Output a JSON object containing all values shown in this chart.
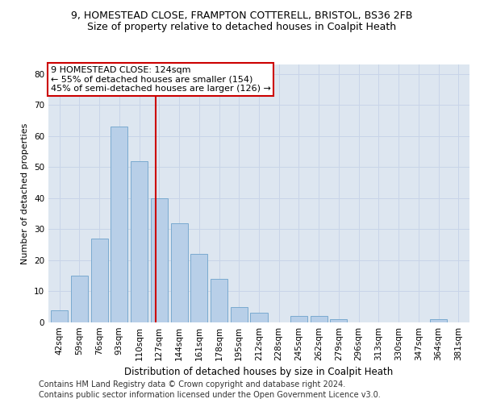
{
  "title1": "9, HOMESTEAD CLOSE, FRAMPTON COTTERELL, BRISTOL, BS36 2FB",
  "title2": "Size of property relative to detached houses in Coalpit Heath",
  "xlabel": "Distribution of detached houses by size in Coalpit Heath",
  "ylabel": "Number of detached properties",
  "categories": [
    "42sqm",
    "59sqm",
    "76sqm",
    "93sqm",
    "110sqm",
    "127sqm",
    "144sqm",
    "161sqm",
    "178sqm",
    "195sqm",
    "212sqm",
    "228sqm",
    "245sqm",
    "262sqm",
    "279sqm",
    "296sqm",
    "313sqm",
    "330sqm",
    "347sqm",
    "364sqm",
    "381sqm"
  ],
  "values": [
    4,
    15,
    27,
    63,
    52,
    40,
    32,
    22,
    14,
    5,
    3,
    0,
    2,
    2,
    1,
    0,
    0,
    0,
    0,
    1,
    0
  ],
  "bar_color": "#b8cfe8",
  "bar_edge_color": "#7aaad0",
  "vline_color": "#cc0000",
  "annotation_text": "9 HOMESTEAD CLOSE: 124sqm\n← 55% of detached houses are smaller (154)\n45% of semi-detached houses are larger (126) →",
  "annotation_box_color": "#ffffff",
  "annotation_box_edge_color": "#cc0000",
  "ylim": [
    0,
    83
  ],
  "yticks": [
    0,
    10,
    20,
    30,
    40,
    50,
    60,
    70,
    80
  ],
  "grid_color": "#c8d4e8",
  "background_color": "#dde6f0",
  "footer1": "Contains HM Land Registry data © Crown copyright and database right 2024.",
  "footer2": "Contains public sector information licensed under the Open Government Licence v3.0.",
  "title1_fontsize": 9,
  "title2_fontsize": 9,
  "xlabel_fontsize": 8.5,
  "ylabel_fontsize": 8,
  "tick_fontsize": 7.5,
  "annotation_fontsize": 8,
  "footer_fontsize": 7
}
